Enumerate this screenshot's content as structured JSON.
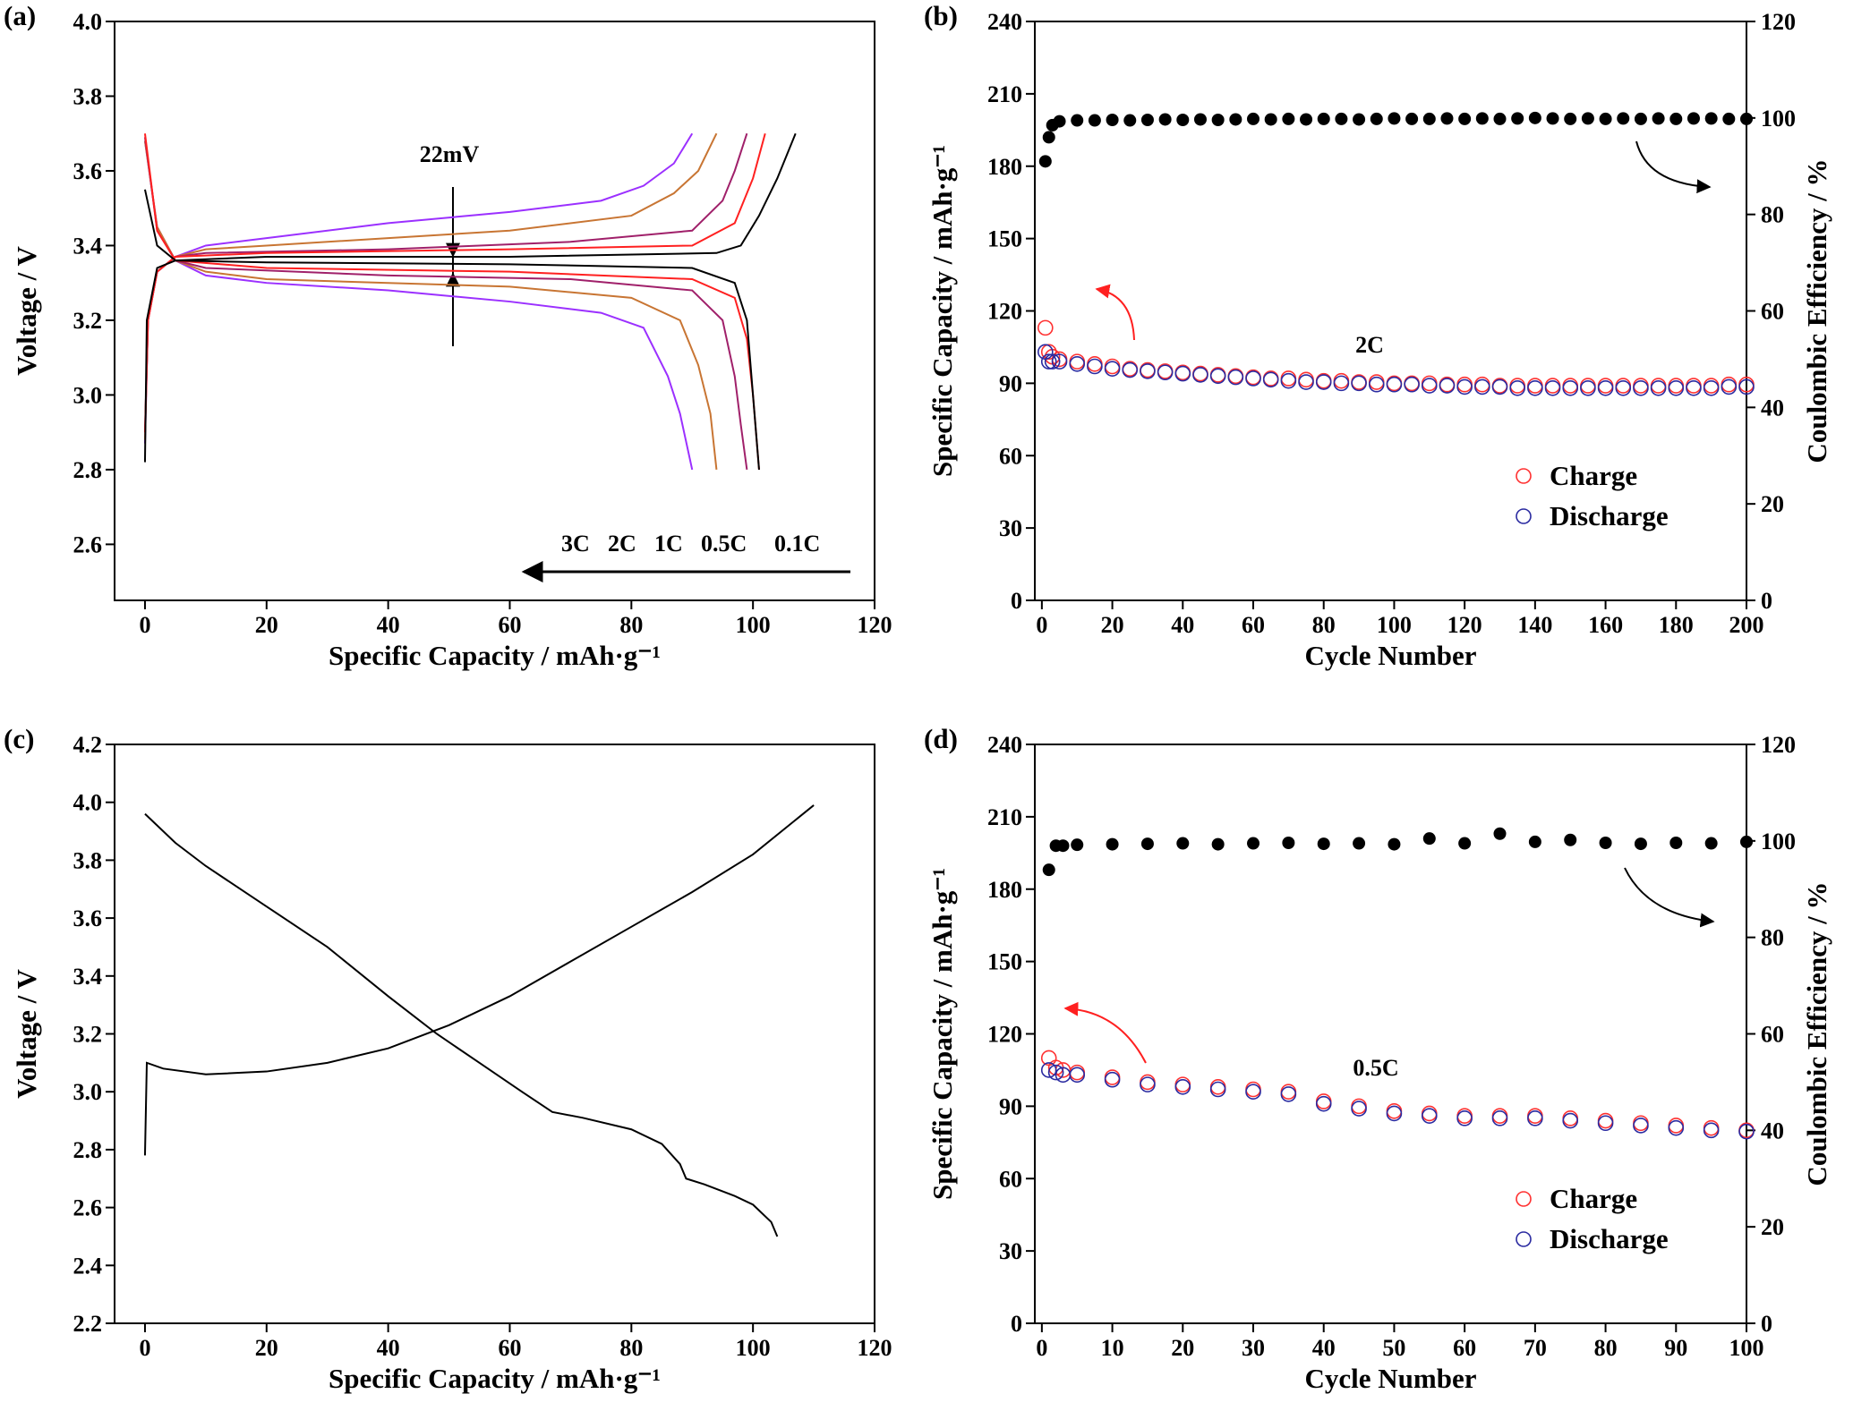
{
  "chart_data": [
    {
      "type": "line",
      "label": "(a)",
      "xlabel": "Specific Capacity / mAh·g⁻¹",
      "ylabel": "Voltage / V",
      "xlim": [
        -5,
        120
      ],
      "xticks": [
        0,
        20,
        40,
        60,
        80,
        100,
        120
      ],
      "ylim": [
        2.45,
        4.0
      ],
      "yticks": [
        2.6,
        2.8,
        {
          "value": 3,
          "label": "3.0"
        },
        3.2,
        3.4,
        3.6,
        3.8,
        {
          "value": 4,
          "label": "4.0"
        }
      ],
      "legend": "lower right",
      "annotations": [
        "22mV"
      ],
      "series": [
        {
          "name": "3C",
          "color": "#9b30ff",
          "x": [
            0,
            0.5,
            2,
            5,
            10,
            20,
            40,
            60,
            75,
            82,
            87,
            90,
            null,
            0,
            2,
            5,
            10,
            20,
            40,
            60,
            75,
            82,
            86,
            88,
            90
          ],
          "values": [
            2.87,
            3.2,
            3.33,
            3.37,
            3.4,
            3.42,
            3.46,
            3.49,
            3.52,
            3.56,
            3.62,
            3.7,
            null,
            3.68,
            3.45,
            3.36,
            3.32,
            3.3,
            3.28,
            3.25,
            3.22,
            3.18,
            3.05,
            2.95,
            2.8
          ]
        },
        {
          "name": "2C",
          "color": "#c87533",
          "x": [
            0,
            0.5,
            2,
            5,
            10,
            20,
            40,
            60,
            80,
            87,
            91,
            94,
            null,
            0,
            2,
            5,
            10,
            20,
            40,
            60,
            80,
            88,
            91,
            93,
            94
          ],
          "values": [
            2.88,
            3.2,
            3.33,
            3.37,
            3.39,
            3.4,
            3.42,
            3.44,
            3.48,
            3.54,
            3.6,
            3.7,
            null,
            3.68,
            3.45,
            3.36,
            3.33,
            3.31,
            3.3,
            3.29,
            3.26,
            3.2,
            3.08,
            2.95,
            2.8
          ]
        },
        {
          "name": "1C",
          "color": "#a0206a",
          "x": [
            0,
            0.5,
            2,
            5,
            10,
            40,
            70,
            90,
            95,
            97,
            99,
            null,
            0,
            2,
            5,
            10,
            40,
            70,
            90,
            95,
            97,
            98,
            99
          ],
          "values": [
            2.9,
            3.2,
            3.33,
            3.37,
            3.38,
            3.39,
            3.41,
            3.44,
            3.52,
            3.6,
            3.7,
            null,
            3.69,
            3.44,
            3.36,
            3.34,
            3.32,
            3.31,
            3.28,
            3.2,
            3.05,
            2.92,
            2.8
          ]
        },
        {
          "name": "0.5C",
          "color": "#ff2020",
          "x": [
            0,
            0.5,
            2,
            5,
            20,
            60,
            90,
            97,
            100,
            102,
            null,
            0,
            2,
            5,
            20,
            60,
            90,
            97,
            99,
            100,
            101
          ],
          "values": [
            2.9,
            3.2,
            3.33,
            3.37,
            3.38,
            3.39,
            3.4,
            3.46,
            3.58,
            3.7,
            null,
            3.7,
            3.44,
            3.36,
            3.34,
            3.33,
            3.31,
            3.26,
            3.15,
            3.0,
            2.8
          ]
        },
        {
          "name": "0.1C",
          "color": "#000000",
          "x": [
            0,
            0.3,
            2,
            5,
            20,
            60,
            94,
            98,
            101,
            104,
            107,
            null,
            0,
            2,
            5,
            20,
            60,
            90,
            97,
            99,
            100,
            101
          ],
          "values": [
            2.82,
            3.2,
            3.34,
            3.36,
            3.37,
            3.37,
            3.38,
            3.4,
            3.48,
            3.58,
            3.7,
            null,
            3.55,
            3.4,
            3.36,
            3.355,
            3.35,
            3.34,
            3.3,
            3.2,
            3.0,
            2.8
          ]
        }
      ]
    },
    {
      "type": "scatter",
      "label": "(b)",
      "xlabel": "Cycle Number",
      "ylabel": "Specific Capacity / mAh·g⁻¹",
      "y2label": "Coulombic Efficiency / %",
      "xlim": [
        -2,
        200
      ],
      "xticks": [
        0,
        20,
        40,
        60,
        80,
        100,
        120,
        140,
        160,
        180,
        200
      ],
      "ylim": [
        0,
        240
      ],
      "yticks": [
        0,
        30,
        60,
        90,
        120,
        150,
        180,
        210,
        240
      ],
      "y2lim": [
        0,
        120
      ],
      "y2ticks": [
        0,
        20,
        40,
        60,
        80,
        100,
        120
      ],
      "legend": "lower right",
      "annotations": [
        "2C"
      ],
      "x": [
        1,
        2,
        3,
        5,
        10,
        15,
        20,
        25,
        30,
        35,
        40,
        45,
        50,
        55,
        60,
        65,
        70,
        75,
        80,
        85,
        90,
        95,
        100,
        105,
        110,
        115,
        120,
        125,
        130,
        135,
        140,
        145,
        150,
        155,
        160,
        165,
        170,
        175,
        180,
        185,
        190,
        195,
        200
      ],
      "series": [
        {
          "name": "Charge",
          "color": "#ff3030",
          "marker": "hollow",
          "values": [
            113,
            103,
            101,
            100,
            99,
            98,
            97,
            96,
            95.5,
            95,
            94.5,
            94,
            93.5,
            93,
            92.5,
            92,
            92,
            91.5,
            91,
            91,
            90.5,
            90.5,
            90,
            90,
            90,
            89.5,
            89.5,
            89.5,
            89,
            89,
            89,
            89,
            89,
            89,
            89,
            89,
            89,
            89,
            89,
            89,
            89,
            89.5,
            89.5
          ]
        },
        {
          "name": "Discharge",
          "color": "#2a2aa0",
          "marker": "hollow",
          "values": [
            103,
            99,
            99,
            99,
            98,
            97,
            96,
            95.5,
            95,
            94.5,
            94,
            93.5,
            93,
            92.5,
            92,
            91.5,
            91,
            90.5,
            90.5,
            90,
            90,
            89.5,
            89.5,
            89.5,
            89,
            89,
            88.5,
            88.5,
            88.5,
            88,
            88,
            88,
            88,
            88,
            88,
            88,
            88,
            88,
            88,
            88,
            88,
            88.5,
            88.5
          ]
        },
        {
          "color": "#000000",
          "marker": "filled",
          "axis": "y2",
          "values": [
            91,
            96,
            98.5,
            99.3,
            99.5,
            99.5,
            99.6,
            99.5,
            99.6,
            99.7,
            99.6,
            99.7,
            99.6,
            99.7,
            99.8,
            99.7,
            99.8,
            99.7,
            99.8,
            99.8,
            99.7,
            99.8,
            99.9,
            99.8,
            99.8,
            99.9,
            99.8,
            99.9,
            99.8,
            99.9,
            100,
            99.9,
            99.8,
            99.9,
            99.8,
            99.9,
            99.8,
            99.9,
            99.8,
            99.9,
            99.9,
            99.8,
            99.8
          ]
        }
      ]
    },
    {
      "type": "line",
      "label": "(c)",
      "xlabel": "Specific Capacity / mAh·g⁻¹",
      "ylabel": "Voltage / V",
      "xlim": [
        -5,
        120
      ],
      "xticks": [
        0,
        20,
        40,
        60,
        80,
        100,
        120
      ],
      "ylim": [
        2.2,
        4.2
      ],
      "yticks": [
        2.2,
        2.4,
        2.6,
        2.8,
        {
          "value": 3,
          "label": "3.0"
        },
        3.2,
        3.4,
        3.6,
        3.8,
        {
          "value": 4,
          "label": "4.0"
        },
        4.2
      ],
      "series": [
        {
          "color": "#000000",
          "x": [
            0,
            0.3,
            3,
            10,
            20,
            30,
            40,
            50,
            60,
            70,
            80,
            90,
            100,
            110
          ],
          "values": [
            2.78,
            3.1,
            3.08,
            3.06,
            3.07,
            3.1,
            3.15,
            3.23,
            3.33,
            3.45,
            3.57,
            3.69,
            3.82,
            3.99
          ]
        },
        {
          "color": "#000000",
          "x": [
            0,
            5,
            10,
            20,
            30,
            40,
            48,
            55,
            62,
            67,
            72,
            80,
            85,
            88,
            89,
            92,
            97,
            100,
            103,
            104
          ],
          "values": [
            3.96,
            3.86,
            3.78,
            3.64,
            3.5,
            3.33,
            3.2,
            3.1,
            3.0,
            2.93,
            2.91,
            2.87,
            2.82,
            2.75,
            2.7,
            2.68,
            2.64,
            2.61,
            2.55,
            2.5
          ]
        }
      ]
    },
    {
      "type": "scatter",
      "label": "(d)",
      "xlabel": "Cycle Number",
      "ylabel": "Specific Capacity / mAh·g⁻¹",
      "y2label": "Coulombic Efficiency / %",
      "xlim": [
        -1,
        100
      ],
      "xticks": [
        0,
        10,
        20,
        30,
        40,
        50,
        60,
        70,
        80,
        90,
        100
      ],
      "ylim": [
        0,
        240
      ],
      "yticks": [
        0,
        30,
        60,
        90,
        120,
        150,
        180,
        210,
        240
      ],
      "y2lim": [
        0,
        120
      ],
      "y2ticks": [
        0,
        20,
        40,
        60,
        80,
        100,
        120
      ],
      "legend": "lower right",
      "annotations": [
        "0.5C"
      ],
      "x": [
        1,
        2,
        3,
        5,
        10,
        15,
        20,
        25,
        30,
        35,
        40,
        45,
        50,
        55,
        60,
        65,
        70,
        75,
        80,
        85,
        90,
        95,
        100
      ],
      "series": [
        {
          "name": "Charge",
          "color": "#ff3030",
          "marker": "hollow",
          "values": [
            110,
            106,
            105,
            104,
            102,
            100,
            99,
            98,
            97,
            96,
            92,
            90,
            88,
            87,
            86,
            86,
            86,
            85,
            84,
            83,
            82,
            81,
            80
          ]
        },
        {
          "name": "Discharge",
          "color": "#2a2aa0",
          "marker": "hollow",
          "values": [
            105,
            104,
            103,
            103,
            101,
            99,
            98,
            97,
            96,
            95,
            91,
            89,
            87,
            86,
            85,
            85,
            85,
            84,
            83,
            82,
            81,
            80,
            79.5
          ]
        },
        {
          "color": "#000000",
          "marker": "filled",
          "axis": "y2",
          "values": [
            94,
            99,
            99,
            99.2,
            99.3,
            99.4,
            99.5,
            99.3,
            99.5,
            99.6,
            99.4,
            99.5,
            99.3,
            100.5,
            99.5,
            101.5,
            99.8,
            100.2,
            99.6,
            99.4,
            99.6,
            99.5,
            99.8
          ]
        }
      ]
    }
  ]
}
